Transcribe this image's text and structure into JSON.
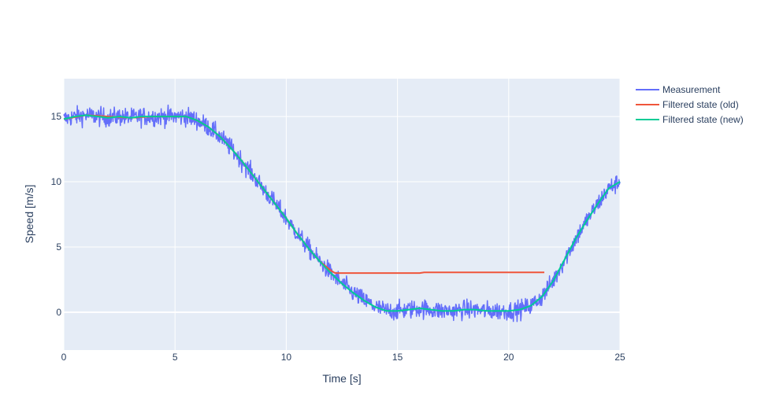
{
  "chart_data": {
    "type": "line",
    "title": "",
    "xlabel": "Time [s]",
    "ylabel": "Speed [m/s]",
    "xlim": [
      0,
      25
    ],
    "ylim": [
      -2.9,
      17.9
    ],
    "xticks": [
      0,
      5,
      10,
      15,
      20,
      25
    ],
    "yticks": [
      0,
      5,
      10,
      15
    ],
    "grid": true,
    "legend_position": "top-right, outside plot",
    "plot_background": "#e5ecf6",
    "grid_color": "#ffffff",
    "text_color": "#2a3f5f",
    "series": [
      {
        "name": "Measurement",
        "color": "#636efa",
        "noise_amplitude": 0.6,
        "x": [
          0,
          0.5,
          1,
          1.5,
          2,
          2.5,
          3,
          3.5,
          4,
          4.5,
          5,
          5.5,
          6,
          6.5,
          7,
          7.5,
          8,
          8.5,
          9,
          9.5,
          10,
          10.5,
          11,
          11.5,
          12,
          12.5,
          13,
          13.5,
          14,
          14.5,
          15,
          15.5,
          16,
          16.5,
          17,
          17.5,
          18,
          18.5,
          19,
          19.5,
          20,
          20.5,
          21,
          21.5,
          22,
          22.5,
          23,
          23.5,
          24,
          24.5,
          25
        ],
        "y": [
          14.8,
          15.0,
          15.1,
          15.0,
          14.9,
          15.0,
          14.9,
          15.0,
          15.0,
          15.0,
          15.0,
          15.0,
          14.7,
          14.2,
          13.5,
          12.6,
          11.6,
          10.5,
          9.4,
          8.3,
          7.2,
          6.0,
          4.9,
          3.9,
          3.0,
          2.2,
          1.5,
          0.9,
          0.4,
          0.1,
          0.1,
          0.2,
          0.3,
          0.2,
          0.1,
          0.1,
          0.2,
          0.2,
          0.1,
          0.1,
          0.1,
          0.2,
          0.5,
          1.2,
          2.4,
          4.0,
          5.6,
          7.0,
          8.3,
          9.5,
          10.0
        ]
      },
      {
        "name": "Filtered state (old)",
        "color": "#ef553b",
        "x": [
          0,
          1,
          2,
          3,
          4,
          5,
          5.5,
          6,
          6.5,
          7,
          7.5,
          8,
          8.5,
          9,
          9.5,
          10,
          10.5,
          11,
          11.5,
          12,
          12.2,
          13,
          14,
          15,
          16,
          16.2,
          17,
          18,
          19,
          20,
          21,
          21.6
        ],
        "y": [
          14.8,
          15.1,
          15.0,
          14.9,
          15.0,
          15.0,
          15.0,
          14.7,
          14.2,
          13.5,
          12.6,
          11.6,
          10.5,
          9.4,
          8.3,
          7.2,
          6.0,
          4.9,
          3.9,
          3.2,
          3.0,
          3.0,
          3.0,
          3.0,
          3.0,
          3.05,
          3.05,
          3.05,
          3.05,
          3.05,
          3.05,
          3.05
        ]
      },
      {
        "name": "Filtered state (new)",
        "color": "#00cc96",
        "x": [
          0,
          0.5,
          1,
          1.5,
          2,
          2.5,
          3,
          3.5,
          4,
          4.5,
          5,
          5.5,
          6,
          6.5,
          7,
          7.5,
          8,
          8.5,
          9,
          9.5,
          10,
          10.5,
          11,
          11.5,
          12,
          12.5,
          13,
          13.5,
          14,
          14.5,
          15,
          15.5,
          16,
          16.5,
          17,
          17.5,
          18,
          18.5,
          19,
          19.5,
          20,
          20.5,
          21,
          21.5,
          22,
          22.5,
          23,
          23.5,
          24,
          24.5,
          25
        ],
        "y": [
          14.8,
          15.0,
          15.1,
          15.0,
          14.9,
          15.0,
          14.9,
          15.0,
          15.0,
          15.0,
          15.0,
          15.0,
          14.7,
          14.2,
          13.5,
          12.6,
          11.6,
          10.5,
          9.4,
          8.3,
          7.2,
          6.0,
          4.9,
          3.9,
          3.0,
          2.2,
          1.5,
          0.9,
          0.4,
          0.1,
          0.1,
          0.2,
          0.3,
          0.2,
          0.1,
          0.1,
          0.2,
          0.2,
          0.1,
          0.1,
          0.1,
          0.2,
          0.5,
          1.2,
          2.4,
          4.0,
          5.6,
          7.0,
          8.3,
          9.5,
          10.0
        ]
      }
    ]
  }
}
